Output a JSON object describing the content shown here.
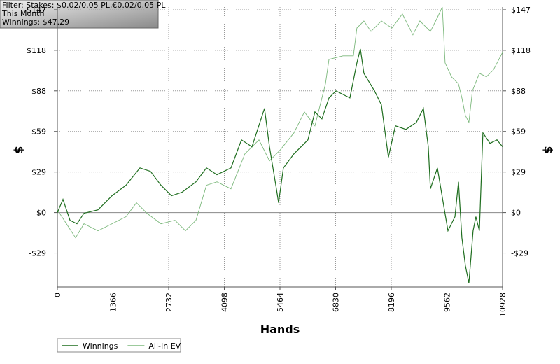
{
  "chart_data": {
    "type": "line",
    "info_lines": [
      "Filter: Stakes: $0.02/0.05 PL,€0.02/0.05 PL",
      "This Month",
      "Winnings: $47.29"
    ],
    "x_label": "Hands",
    "y_label": "$",
    "y2_label": "$",
    "xlim": [
      0,
      10928
    ],
    "xticks": [
      0,
      1366,
      2732,
      4098,
      5464,
      6830,
      8196,
      9562,
      10928
    ],
    "ylim": [
      -54,
      149
    ],
    "yticks": [
      {
        "value": -29.4,
        "label": "-$29"
      },
      {
        "value": 0,
        "label": "$0"
      },
      {
        "value": 29.4,
        "label": "$29"
      },
      {
        "value": 58.8,
        "label": "$59"
      },
      {
        "value": 88.2,
        "label": "$88"
      },
      {
        "value": 117.6,
        "label": "$118"
      },
      {
        "value": 147,
        "label": "$147"
      }
    ],
    "y2lim": [
      -54,
      149
    ],
    "y2ticks": [
      {
        "value": -29.4,
        "label": "-$29"
      },
      {
        "value": 0,
        "label": "$0"
      },
      {
        "value": 29.4,
        "label": "$29"
      },
      {
        "value": 58.8,
        "label": "$59"
      },
      {
        "value": 88.2,
        "label": "$88"
      },
      {
        "value": 117.6,
        "label": "$118"
      },
      {
        "value": 147,
        "label": "$147"
      }
    ],
    "grid": true,
    "legend": "bottom-left",
    "series": [
      {
        "name": "Winnings",
        "color": "#1f6e1f",
        "x": [
          0,
          137,
          309,
          481,
          653,
          996,
          1340,
          1684,
          2027,
          2285,
          2543,
          2800,
          3058,
          3402,
          3659,
          3917,
          4261,
          4519,
          4776,
          5085,
          5206,
          5377,
          5429,
          5549,
          5807,
          6150,
          6322,
          6494,
          6666,
          6838,
          7181,
          7353,
          7439,
          7525,
          7783,
          7954,
          8126,
          8298,
          8556,
          8813,
          8985,
          9105,
          9157,
          9329,
          9501,
          9587,
          9759,
          9845,
          9930,
          10016,
          10102,
          10205,
          10274,
          10360,
          10446,
          10618,
          10790,
          10928
        ],
        "values": [
          0,
          9.6,
          -5.6,
          -8.1,
          -0.5,
          2,
          12.2,
          19.8,
          32.4,
          29.9,
          19.8,
          12.2,
          14.7,
          22.3,
          32.4,
          27.4,
          32.4,
          52.7,
          47.7,
          75.5,
          47.7,
          17.2,
          7.1,
          32.4,
          42.6,
          52.7,
          73,
          67.9,
          83.1,
          88.2,
          83.1,
          108.5,
          118.6,
          100.9,
          88.2,
          78.1,
          40.1,
          62.9,
          60.3,
          65.4,
          75.5,
          47.7,
          17.2,
          32.4,
          2,
          -13.2,
          -3,
          22.3,
          -18.3,
          -38.5,
          -51.2,
          -13.2,
          -3,
          -13.2,
          57.8,
          50.2,
          52.7,
          47.7
        ]
      },
      {
        "name": "All-In EV",
        "color": "#7cb87c",
        "x": [
          0,
          223,
          447,
          653,
          996,
          1340,
          1684,
          1941,
          2199,
          2543,
          2886,
          3144,
          3402,
          3659,
          3917,
          4261,
          4604,
          4948,
          5206,
          5463,
          5807,
          6064,
          6322,
          6580,
          6666,
          7009,
          7267,
          7353,
          7525,
          7697,
          7954,
          8212,
          8470,
          8727,
          8899,
          9157,
          9329,
          9449,
          9518,
          9673,
          9845,
          9930,
          10016,
          10102,
          10188,
          10360,
          10531,
          10703,
          10928
        ],
        "values": [
          2,
          -8.1,
          -18.3,
          -8.1,
          -13.2,
          -8.1,
          -3,
          7.1,
          -0.5,
          -8.1,
          -5.6,
          -13.2,
          -5.6,
          19.8,
          22.3,
          17.2,
          42.6,
          52.7,
          37.5,
          45.1,
          57.8,
          73,
          62.9,
          93.3,
          111,
          113.6,
          113.6,
          133.8,
          138.9,
          131.3,
          138.9,
          133.8,
          144,
          128.8,
          138.9,
          131.3,
          141.4,
          149,
          108.5,
          98.4,
          93.3,
          83.1,
          70.4,
          65.4,
          88.2,
          100.9,
          98.4,
          103.4,
          116.1
        ]
      }
    ]
  }
}
